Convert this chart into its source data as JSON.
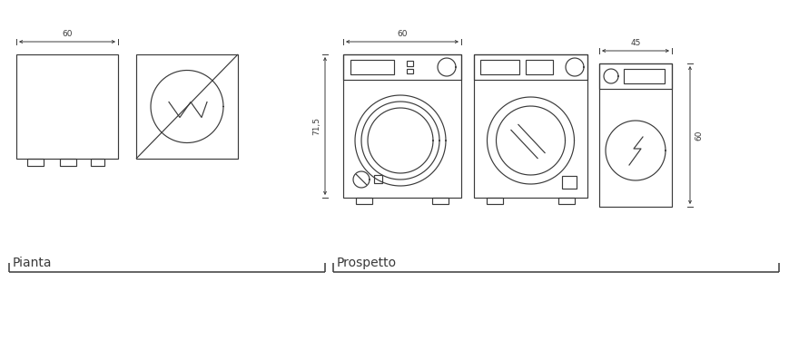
{
  "bg_color": "#ffffff",
  "line_color": "#3a3a3a",
  "dim_color": "#3a3a3a",
  "label_pianta": "Pianta",
  "label_prospetto": "Prospetto",
  "dim_60a": "60",
  "dim_60b": "60",
  "dim_60c": "60",
  "dim_715": "71,5",
  "dim_45": "45",
  "label_fontsize": 10,
  "dim_fontsize": 6.5,
  "lw": 0.85
}
